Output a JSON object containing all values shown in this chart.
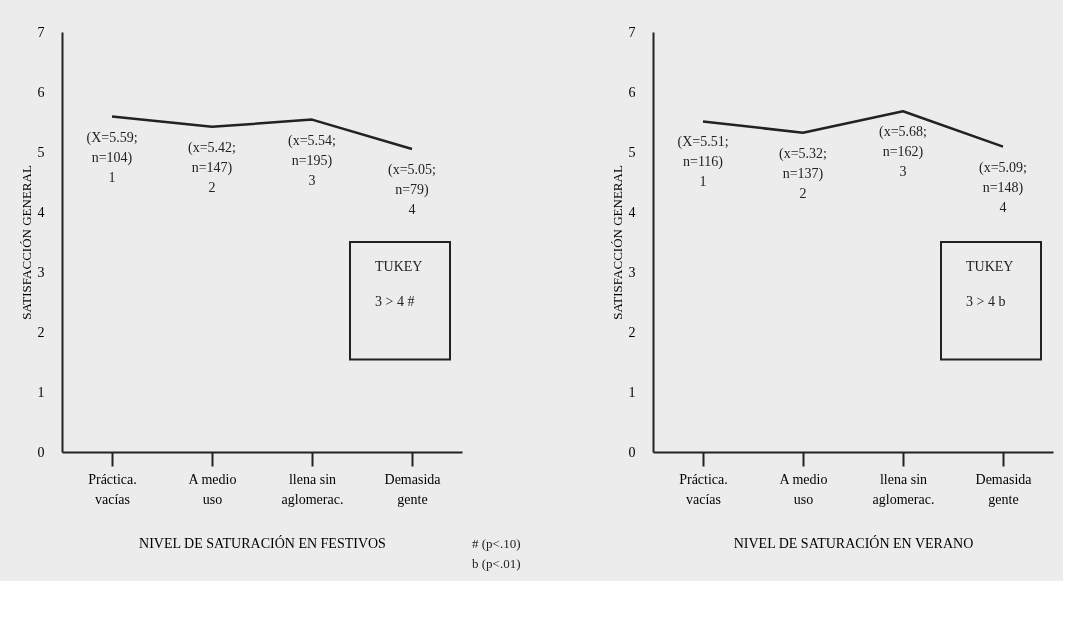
{
  "chart_data": [
    {
      "type": "line",
      "xlabel": "NIVEL DE SATURACIÓN EN FESTIVOS",
      "ylabel": "SATISFACCIÓN GENERAL",
      "categories": [
        "Práctica.\nvacías",
        "A medio\nuso",
        "llena sin\naglomerac.",
        "Demasida\ngente"
      ],
      "series": [
        {
          "color": "#222222",
          "values": [
            5.59,
            5.42,
            5.54,
            5.05
          ],
          "value_labels": [
            "(X=5.59;\nn=104)\n1",
            "(x=5.42;\nn=147)\n2",
            "(x=5.54;\nn=195)\n3",
            "(x=5.05;\nn=79)\n4"
          ]
        }
      ],
      "ylim": [
        0,
        7
      ],
      "yticks": [
        0,
        1,
        2,
        3,
        4,
        5,
        6,
        7
      ],
      "grid": false,
      "annotations": [
        "TUKEY",
        "3 > 4 #",
        "# (p<.10)",
        "b (p<.01)"
      ]
    },
    {
      "type": "line",
      "xlabel": "NIVEL DE SATURACIÓN EN VERANO",
      "ylabel": "SATISFACCIÓN GENERAL",
      "categories": [
        "Práctica.\nvacías",
        "A medio\nuso",
        "llena sin\naglomerac.",
        "Demasida\ngente"
      ],
      "series": [
        {
          "color": "#222222",
          "values": [
            5.51,
            5.32,
            5.68,
            5.09
          ],
          "value_labels": [
            "(X=5.51;\nn=116)\n1",
            "(x=5.32;\nn=137)\n2",
            "(x=5.68;\nn=162)\n3",
            "(x=5.09;\nn=148)\n4"
          ]
        }
      ],
      "ylim": [
        0,
        7
      ],
      "yticks": [
        0,
        1,
        2,
        3,
        4,
        5,
        6,
        7
      ],
      "grid": false,
      "annotations": [
        "TUKEY",
        "3 > 4 b"
      ]
    }
  ]
}
